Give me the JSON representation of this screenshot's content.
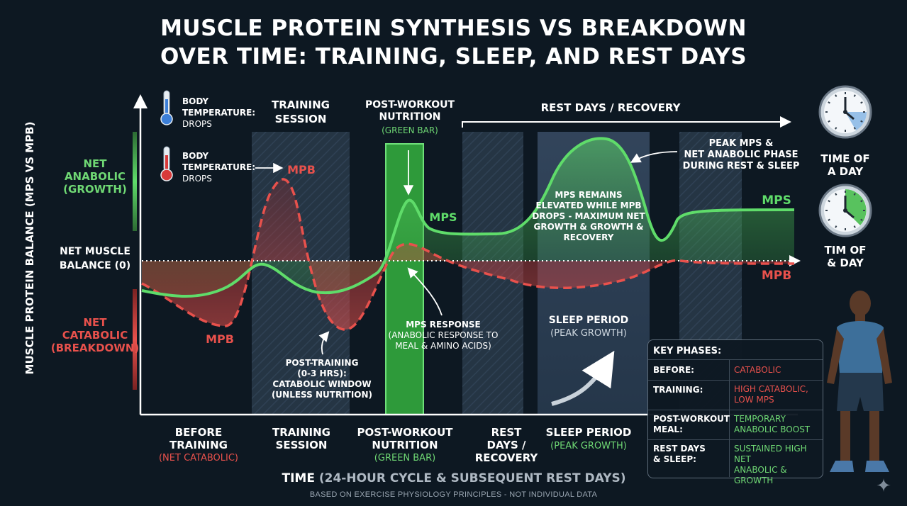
{
  "title_line1": "MUSCLE PROTEIN SYNTHESIS VS BREAKDOWN",
  "title_line2": "OVER TIME: TRAINING, SLEEP, AND REST DAYS",
  "footnote": "BASED ON EXERCISE PHYSIOLOGY PRINCIPLES - NOT INDIVIDUAL DATA",
  "colors": {
    "background": "#0d1822",
    "mps_green": "#5fdc6a",
    "mpb_red": "#e8514c",
    "label_green": "#6fd874",
    "label_red": "#e8514c",
    "nutrition_bar": "#2e9a3a",
    "phase_shade": "#2a3a4a"
  },
  "chart_data": {
    "type": "line",
    "xlabel_main": "TIME",
    "xlabel_sub": "(24-HOUR CYCLE & SUBSEQUENT REST DAYS)",
    "ylabel": "MUSCLE PROTEIN BALANCE (MPS VS MPB)",
    "y_scale": "qualitative",
    "y_zero_label_line1": "NET MUSCLE",
    "y_zero_label_line2": "BALANCE (0)",
    "y_pos_label": [
      "NET",
      "ANABOLIC",
      "(GROWTH)"
    ],
    "y_neg_label": [
      "NET",
      "CATABOLIC",
      "(BREAKDOWN)"
    ],
    "grid": false,
    "legend": "inline labels",
    "series": [
      {
        "name": "MPS",
        "color": "#5fdc6a",
        "style": "solid"
      },
      {
        "name": "MPB",
        "color": "#e8514c",
        "style": "dashed"
      }
    ],
    "phases": [
      {
        "line1": "BEFORE",
        "line2": "TRAINING",
        "sub": "(NET CATABOLIC)",
        "sub_color": "red"
      },
      {
        "line1": "TRAINING",
        "line2": "SESSION",
        "sub": "",
        "sub_color": ""
      },
      {
        "line1": "POST-WORKOUT",
        "line2": "NUTRITION",
        "sub": "(GREEN BAR)",
        "sub_color": "green"
      },
      {
        "line1": "REST",
        "line2": "DAYS /",
        "line3": "RECOVERY",
        "sub": "",
        "sub_color": ""
      },
      {
        "line1": "SLEEP PERIOD",
        "line2": "",
        "sub": "(PEAK GROWTH)",
        "sub_color": "green"
      }
    ],
    "band_labels": {
      "training": [
        "TRAINING",
        "SESSION"
      ],
      "nutrition": [
        "POST-WORKOUT",
        "NUTRITION"
      ],
      "nutrition_sub": "(GREEN BAR)",
      "rest": "REST DAYS / RECOVERY",
      "sleep": [
        "SLEEP PERIOD"
      ],
      "sleep_sub": "(PEAK GROWTH)"
    },
    "annotations": {
      "body_temp_1": [
        "BODY",
        "TEMPERATURE:",
        "DROPS"
      ],
      "body_temp_2": [
        "BODY",
        "TEMPERATURE:",
        "DROPS"
      ],
      "mpb_training": "MPB",
      "mpb_before": "MPB",
      "mps_postworkout": "MPS",
      "mps_right": "MPS",
      "mpb_right": "MPB",
      "post_training": [
        "POST-TRAINING",
        "(0-3 HRS):",
        "CATABOLIC WINDOW",
        "(UNLESS NUTRITION)"
      ],
      "mps_response": [
        "MPS RESPONSE",
        "(ANABOLIC RESPONSE TO",
        "MEAL & AMINO ACIDS)"
      ],
      "mps_elevated": [
        "MPS REMAINS",
        "ELEVATED WHILE MPB",
        "DROPS - MAXIMUM NET",
        "GROWTH & GROWTH &",
        "RECOVERY"
      ],
      "peak_mps": [
        "PEAK MPS &",
        "NET ANABOLIC PHASE",
        "DURING REST & SLEEP"
      ]
    }
  },
  "clock_labels": [
    [
      "TIME OF",
      "A DAY"
    ],
    [
      "TIM OF",
      "& DAY"
    ]
  ],
  "key_phases": {
    "title": "KEY PHASES:",
    "rows": [
      {
        "label": [
          "BEFORE:"
        ],
        "value": [
          "CATABOLIC"
        ],
        "color": "red"
      },
      {
        "label": [
          "TRAINING:"
        ],
        "value": [
          "HIGH CATABOLIC,",
          "LOW MPS"
        ],
        "color": "red"
      },
      {
        "label": [
          "POST-WORKOUT",
          "MEAL:"
        ],
        "value": [
          "TEMPORARY",
          "ANABOLIC BOOST"
        ],
        "color": "green"
      },
      {
        "label": [
          "REST DAYS",
          "& SLEEP:"
        ],
        "value": [
          "SUSTAINED HIGH NET",
          "ANABOLIC & GROWTH"
        ],
        "color": "green"
      }
    ]
  }
}
